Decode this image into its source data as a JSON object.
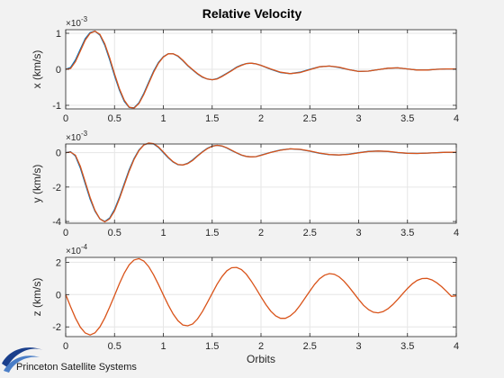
{
  "chart_data": {
    "title": "Relative Velocity",
    "type": "line",
    "xlabel": "Orbits",
    "xlim": [
      0,
      4
    ],
    "xticks": [
      0,
      0.5,
      1,
      1.5,
      2,
      2.5,
      3,
      3.5,
      4
    ],
    "xtick_labels": [
      "0",
      "0.5",
      "1",
      "1.5",
      "2",
      "2.5",
      "3",
      "3.5",
      "4"
    ],
    "grid": true,
    "series_colors": [
      "#0072bd",
      "#d95319"
    ],
    "subplots": [
      {
        "ylabel": "x (km/s)",
        "exponent_label": "×10",
        "exponent_power": "-3",
        "ylim": [
          -1.1,
          1.1
        ],
        "yticks": [
          -1,
          0,
          1
        ],
        "ytick_labels": [
          "-1",
          "0",
          "1"
        ],
        "series": [
          {
            "x": [
              0,
              0.05,
              0.1,
              0.15,
              0.2,
              0.25,
              0.3,
              0.35,
              0.4,
              0.45,
              0.5,
              0.55,
              0.6,
              0.65,
              0.7,
              0.75,
              0.8,
              0.85,
              0.9,
              0.95,
              1.0,
              1.05,
              1.1,
              1.15,
              1.2,
              1.25,
              1.3,
              1.35,
              1.4,
              1.45,
              1.5,
              1.55,
              1.6,
              1.65,
              1.7,
              1.75,
              1.8,
              1.85,
              1.9,
              1.95,
              2.0,
              2.1,
              2.2,
              2.3,
              2.4,
              2.5,
              2.6,
              2.7,
              2.8,
              2.9,
              3.0,
              3.1,
              3.2,
              3.3,
              3.4,
              3.5,
              3.6,
              3.7,
              3.8,
              3.9,
              4.0
            ],
            "values": [
              0,
              0.05,
              0.26,
              0.56,
              0.85,
              1.02,
              1.06,
              0.95,
              0.67,
              0.27,
              -0.18,
              -0.58,
              -0.89,
              -1.06,
              -1.07,
              -0.93,
              -0.67,
              -0.36,
              -0.05,
              0.19,
              0.35,
              0.43,
              0.43,
              0.36,
              0.24,
              0.1,
              -0.02,
              -0.13,
              -0.22,
              -0.27,
              -0.29,
              -0.26,
              -0.19,
              -0.11,
              -0.03,
              0.06,
              0.12,
              0.16,
              0.17,
              0.15,
              0.11,
              0.0,
              -0.09,
              -0.12,
              -0.08,
              0.0,
              0.07,
              0.09,
              0.05,
              -0.01,
              -0.06,
              -0.05,
              -0.01,
              0.03,
              0.04,
              0.01,
              -0.02,
              -0.02,
              0.0,
              0.01,
              0.01
            ]
          },
          {
            "x": [
              0,
              0.05,
              0.1,
              0.15,
              0.2,
              0.25,
              0.3,
              0.35,
              0.4,
              0.45,
              0.5,
              0.55,
              0.6,
              0.65,
              0.7,
              0.75,
              0.8,
              0.85,
              0.9,
              0.95,
              1.0,
              1.05,
              1.1,
              1.15,
              1.2,
              1.25,
              1.3,
              1.35,
              1.4,
              1.45,
              1.5,
              1.55,
              1.6,
              1.65,
              1.7,
              1.75,
              1.8,
              1.85,
              1.9,
              1.95,
              2.0,
              2.1,
              2.2,
              2.3,
              2.4,
              2.5,
              2.6,
              2.7,
              2.8,
              2.9,
              3.0,
              3.1,
              3.2,
              3.3,
              3.4,
              3.5,
              3.6,
              3.7,
              3.8,
              3.9,
              4.0
            ],
            "values": [
              0,
              0.02,
              0.21,
              0.51,
              0.81,
              1.0,
              1.06,
              0.97,
              0.71,
              0.32,
              -0.13,
              -0.54,
              -0.86,
              -1.05,
              -1.08,
              -0.95,
              -0.7,
              -0.39,
              -0.08,
              0.17,
              0.34,
              0.43,
              0.43,
              0.37,
              0.25,
              0.11,
              -0.01,
              -0.12,
              -0.21,
              -0.27,
              -0.29,
              -0.27,
              -0.2,
              -0.12,
              -0.04,
              0.05,
              0.11,
              0.16,
              0.17,
              0.15,
              0.11,
              0.01,
              -0.08,
              -0.12,
              -0.09,
              -0.01,
              0.07,
              0.09,
              0.06,
              -0.01,
              -0.06,
              -0.05,
              -0.01,
              0.03,
              0.04,
              0.01,
              -0.02,
              -0.02,
              0.0,
              0.01,
              0.01
            ]
          }
        ]
      },
      {
        "ylabel": "y (km/s)",
        "exponent_label": "×10",
        "exponent_power": "-3",
        "ylim": [
          -4.1,
          0.5
        ],
        "yticks": [
          -4,
          -2,
          0
        ],
        "ytick_labels": [
          "-4",
          "-2",
          "0"
        ],
        "series": [
          {
            "x": [
              0,
              0.05,
              0.1,
              0.15,
              0.2,
              0.25,
              0.3,
              0.35,
              0.4,
              0.45,
              0.5,
              0.55,
              0.6,
              0.65,
              0.7,
              0.75,
              0.8,
              0.85,
              0.9,
              0.95,
              1.0,
              1.05,
              1.1,
              1.15,
              1.2,
              1.25,
              1.3,
              1.35,
              1.4,
              1.45,
              1.5,
              1.55,
              1.6,
              1.65,
              1.7,
              1.75,
              1.8,
              1.85,
              1.9,
              1.95,
              2.0,
              2.1,
              2.2,
              2.3,
              2.4,
              2.5,
              2.6,
              2.7,
              2.8,
              2.9,
              3.0,
              3.1,
              3.2,
              3.3,
              3.4,
              3.5,
              3.6,
              3.7,
              3.8,
              3.9,
              4.0
            ],
            "values": [
              0,
              0.05,
              -0.2,
              -0.9,
              -1.8,
              -2.7,
              -3.4,
              -3.85,
              -4.0,
              -3.8,
              -3.3,
              -2.6,
              -1.8,
              -1.0,
              -0.35,
              0.15,
              0.45,
              0.55,
              0.5,
              0.3,
              0.0,
              -0.3,
              -0.55,
              -0.7,
              -0.72,
              -0.62,
              -0.42,
              -0.18,
              0.05,
              0.25,
              0.38,
              0.42,
              0.38,
              0.27,
              0.12,
              -0.02,
              -0.15,
              -0.22,
              -0.25,
              -0.23,
              -0.15,
              0.02,
              0.15,
              0.22,
              0.18,
              0.08,
              -0.04,
              -0.12,
              -0.14,
              -0.09,
              0.0,
              0.07,
              0.09,
              0.06,
              0.0,
              -0.04,
              -0.05,
              -0.03,
              0.0,
              0.02,
              0.02
            ]
          },
          {
            "x": [
              0,
              0.05,
              0.1,
              0.15,
              0.2,
              0.25,
              0.3,
              0.35,
              0.4,
              0.45,
              0.5,
              0.55,
              0.6,
              0.65,
              0.7,
              0.75,
              0.8,
              0.85,
              0.9,
              0.95,
              1.0,
              1.05,
              1.1,
              1.15,
              1.2,
              1.25,
              1.3,
              1.35,
              1.4,
              1.45,
              1.5,
              1.55,
              1.6,
              1.65,
              1.7,
              1.75,
              1.8,
              1.85,
              1.9,
              1.95,
              2.0,
              2.1,
              2.2,
              2.3,
              2.4,
              2.5,
              2.6,
              2.7,
              2.8,
              2.9,
              3.0,
              3.1,
              3.2,
              3.3,
              3.4,
              3.5,
              3.6,
              3.7,
              3.8,
              3.9,
              4.0
            ],
            "values": [
              0,
              0.03,
              -0.15,
              -0.8,
              -1.7,
              -2.6,
              -3.35,
              -3.85,
              -4.02,
              -3.85,
              -3.38,
              -2.68,
              -1.88,
              -1.08,
              -0.4,
              0.12,
              0.44,
              0.56,
              0.52,
              0.33,
              0.04,
              -0.27,
              -0.53,
              -0.69,
              -0.72,
              -0.64,
              -0.45,
              -0.2,
              0.03,
              0.23,
              0.37,
              0.42,
              0.39,
              0.28,
              0.14,
              -0.01,
              -0.14,
              -0.22,
              -0.25,
              -0.23,
              -0.16,
              0.01,
              0.14,
              0.22,
              0.19,
              0.09,
              -0.03,
              -0.11,
              -0.14,
              -0.1,
              -0.01,
              0.06,
              0.09,
              0.07,
              0.01,
              -0.04,
              -0.05,
              -0.03,
              0.0,
              0.02,
              0.02
            ]
          }
        ]
      },
      {
        "ylabel": "z (km/s)",
        "exponent_label": "×10",
        "exponent_power": "-4",
        "ylim": [
          -2.6,
          2.3
        ],
        "yticks": [
          -2,
          0,
          2
        ],
        "ytick_labels": [
          "-2",
          "0",
          "2"
        ],
        "series": [
          {
            "x": [
              0,
              0.05,
              0.1,
              0.15,
              0.2,
              0.25,
              0.3,
              0.35,
              0.4,
              0.45,
              0.5,
              0.55,
              0.6,
              0.65,
              0.7,
              0.75,
              0.8,
              0.85,
              0.9,
              0.95,
              1.0,
              1.05,
              1.1,
              1.15,
              1.2,
              1.25,
              1.3,
              1.35,
              1.4,
              1.45,
              1.5,
              1.55,
              1.6,
              1.65,
              1.7,
              1.75,
              1.8,
              1.85,
              1.9,
              1.95,
              2.0,
              2.05,
              2.1,
              2.15,
              2.2,
              2.25,
              2.3,
              2.35,
              2.4,
              2.45,
              2.5,
              2.55,
              2.6,
              2.65,
              2.7,
              2.75,
              2.8,
              2.85,
              2.9,
              2.95,
              3.0,
              3.05,
              3.1,
              3.15,
              3.2,
              3.25,
              3.3,
              3.35,
              3.4,
              3.45,
              3.5,
              3.55,
              3.6,
              3.65,
              3.7,
              3.75,
              3.8,
              3.85,
              3.9,
              3.95,
              4.0
            ],
            "values": [
              0,
              -0.75,
              -1.45,
              -2.02,
              -2.38,
              -2.5,
              -2.37,
              -2.0,
              -1.45,
              -0.78,
              -0.05,
              0.68,
              1.33,
              1.84,
              2.14,
              2.22,
              2.08,
              1.73,
              1.22,
              0.62,
              -0.02,
              -0.64,
              -1.2,
              -1.62,
              -1.88,
              -1.93,
              -1.82,
              -1.51,
              -1.05,
              -0.5,
              0.08,
              0.64,
              1.11,
              1.47,
              1.66,
              1.68,
              1.55,
              1.26,
              0.84,
              0.36,
              -0.14,
              -0.62,
              -1.03,
              -1.32,
              -1.47,
              -1.47,
              -1.32,
              -1.05,
              -0.67,
              -0.23,
              0.22,
              0.64,
              0.98,
              1.2,
              1.3,
              1.26,
              1.1,
              0.83,
              0.48,
              0.09,
              -0.3,
              -0.66,
              -0.93,
              -1.09,
              -1.13,
              -1.06,
              -0.88,
              -0.62,
              -0.3,
              0.04,
              0.38,
              0.67,
              0.88,
              0.99,
              1.0,
              0.91,
              0.73,
              0.49,
              0.2,
              -0.11,
              -0.08
            ]
          }
        ]
      }
    ]
  },
  "logo": {
    "text": "Princeton Satellite Systems",
    "colors": [
      "#1a3f8c",
      "#4a7ec7"
    ]
  }
}
